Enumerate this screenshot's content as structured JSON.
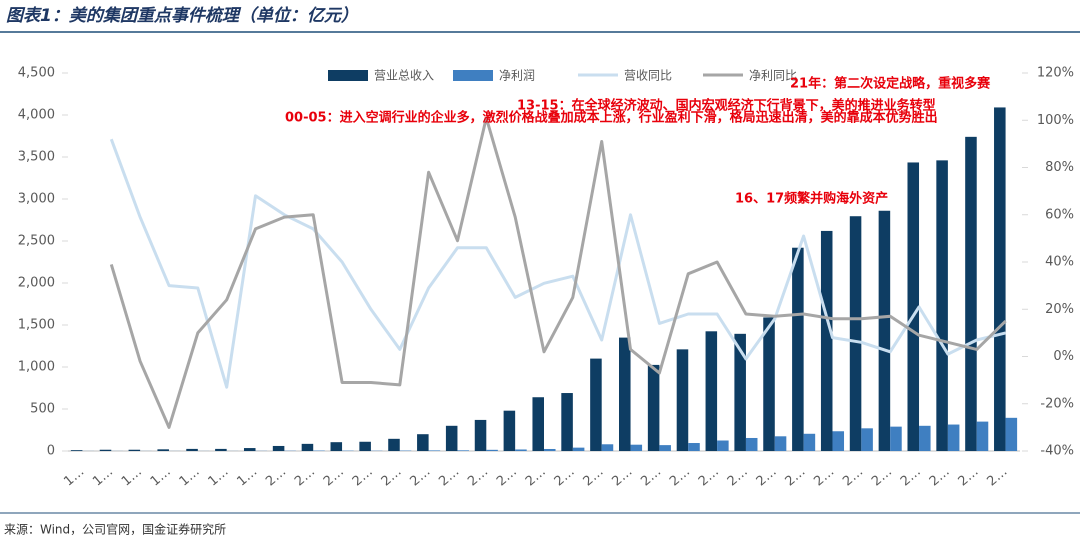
{
  "chart_data": {
    "type": "bar-line",
    "title": "图表1：美的集团重点事件梳理（单位：亿元）",
    "source": "来源：Wind，公司官网，国金证券研究所",
    "categories": [
      "1…",
      "1…",
      "1…",
      "1…",
      "1…",
      "1…",
      "1…",
      "2…",
      "2…",
      "2…",
      "2…",
      "2…",
      "2…",
      "2…",
      "2…",
      "2…",
      "2…",
      "2…",
      "2…",
      "2…",
      "2…",
      "2…",
      "2…",
      "2…",
      "2…",
      "2…",
      "2…",
      "2…",
      "2…",
      "2…",
      "2…",
      "2…",
      "2…"
    ],
    "series": [
      {
        "name": "营业总收入",
        "color": "#0e3d63",
        "kind": "bar",
        "values": [
          10,
          15,
          15,
          20,
          25,
          25,
          35,
          60,
          85,
          105,
          110,
          145,
          200,
          300,
          370,
          480,
          640,
          690,
          1100,
          1350,
          1025,
          1210,
          1425,
          1395,
          1590,
          2420,
          2620,
          2795,
          2860,
          3435,
          3460,
          3740,
          4090
        ]
      },
      {
        "name": "净利润",
        "color": "#3f7fc1",
        "kind": "bar",
        "values": [
          1,
          1,
          1,
          1,
          1,
          1,
          2,
          3,
          5,
          4,
          3,
          5,
          7,
          8,
          14,
          18,
          24,
          40,
          80,
          75,
          70,
          95,
          125,
          155,
          175,
          205,
          235,
          270,
          290,
          300,
          315,
          350,
          395
        ]
      },
      {
        "name": "营收同比",
        "color": "#c9deef",
        "kind": "line",
        "axis": "y2",
        "values": [
          null,
          92,
          59,
          30,
          29,
          -13,
          68,
          60,
          54,
          40,
          20,
          3,
          29,
          46,
          46,
          25,
          31,
          34,
          7,
          60,
          14,
          18,
          18,
          -1,
          16,
          51,
          8,
          6,
          2,
          21,
          1,
          7,
          10
        ]
      },
      {
        "name": "净利同比",
        "color": "#a6a6a6",
        "kind": "line",
        "axis": "y2",
        "values": [
          null,
          39,
          -2,
          -30,
          10,
          24,
          54,
          59,
          60,
          -11,
          -11,
          -12,
          78,
          49,
          101,
          59,
          2,
          25,
          91,
          3,
          -7,
          35,
          40,
          18,
          17,
          18,
          16,
          16,
          17,
          9,
          6,
          3,
          15
        ]
      }
    ],
    "ylim": [
      0,
      4500
    ],
    "yticks": [
      0,
      500,
      {
        "value": 1000,
        "label": "1,000"
      },
      {
        "value": 1500,
        "label": "1,500"
      },
      {
        "value": 2000,
        "label": "2,000"
      },
      {
        "value": 2500,
        "label": "2,500"
      },
      {
        "value": 3000,
        "label": "3,000"
      },
      {
        "value": 3500,
        "label": "3,500"
      },
      {
        "value": 4000,
        "label": "4,000"
      },
      {
        "value": 4500,
        "label": "4,500"
      }
    ],
    "y2lim": [
      -40,
      120
    ],
    "y2ticks": [
      {
        "value": -40,
        "label": "-40%"
      },
      {
        "value": -20,
        "label": "-20%"
      },
      {
        "value": 0,
        "label": "0%"
      },
      {
        "value": 20,
        "label": "20%"
      },
      {
        "value": 40,
        "label": "40%"
      },
      {
        "value": 60,
        "label": "60%"
      },
      {
        "value": 80,
        "label": "80%"
      },
      {
        "value": 100,
        "label": "100%"
      },
      {
        "value": 120,
        "label": "120%"
      }
    ],
    "legend": "top",
    "annotations": [
      {
        "text": "21年：第二次设定战略，重视多赛"
      },
      {
        "text": "13-15：在全球经济波动、国内宏观经济下行背景下，美的推进业务转型"
      },
      {
        "text": "00-05：进入空调行业的企业多，激烈价格战叠加成本上涨，行业盈利下滑，格局迅速出清，美的靠成本优势胜出"
      },
      {
        "text": "16、17频繁并购海外资产"
      }
    ]
  }
}
